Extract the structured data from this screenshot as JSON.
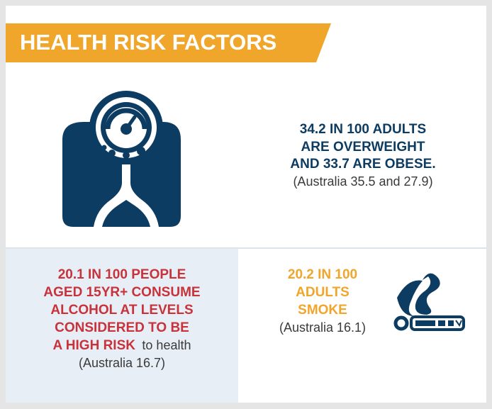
{
  "header": {
    "title": "HEALTH RISK FACTORS"
  },
  "sections": [
    {
      "highlight": [
        "34.2 IN 100 ADULTS",
        "ARE OVERWEIGHT",
        "AND 33.7 ARE OBESE."
      ],
      "note": "(Australia 35.5 and 27.9)"
    },
    {
      "highlight": [
        "20.1 IN 100 PEOPLE",
        "AGED 15YR+ CONSUME",
        "ALCOHOL AT LEVELS",
        "CONSIDERED TO BE",
        "A HIGH RISK"
      ],
      "highlight_tail": "to health",
      "note": "(Australia 16.7)"
    },
    {
      "highlight": [
        "20.2 IN 100",
        "ADULTS",
        "SMOKE"
      ],
      "note": "(Australia 16.1)"
    }
  ]
}
